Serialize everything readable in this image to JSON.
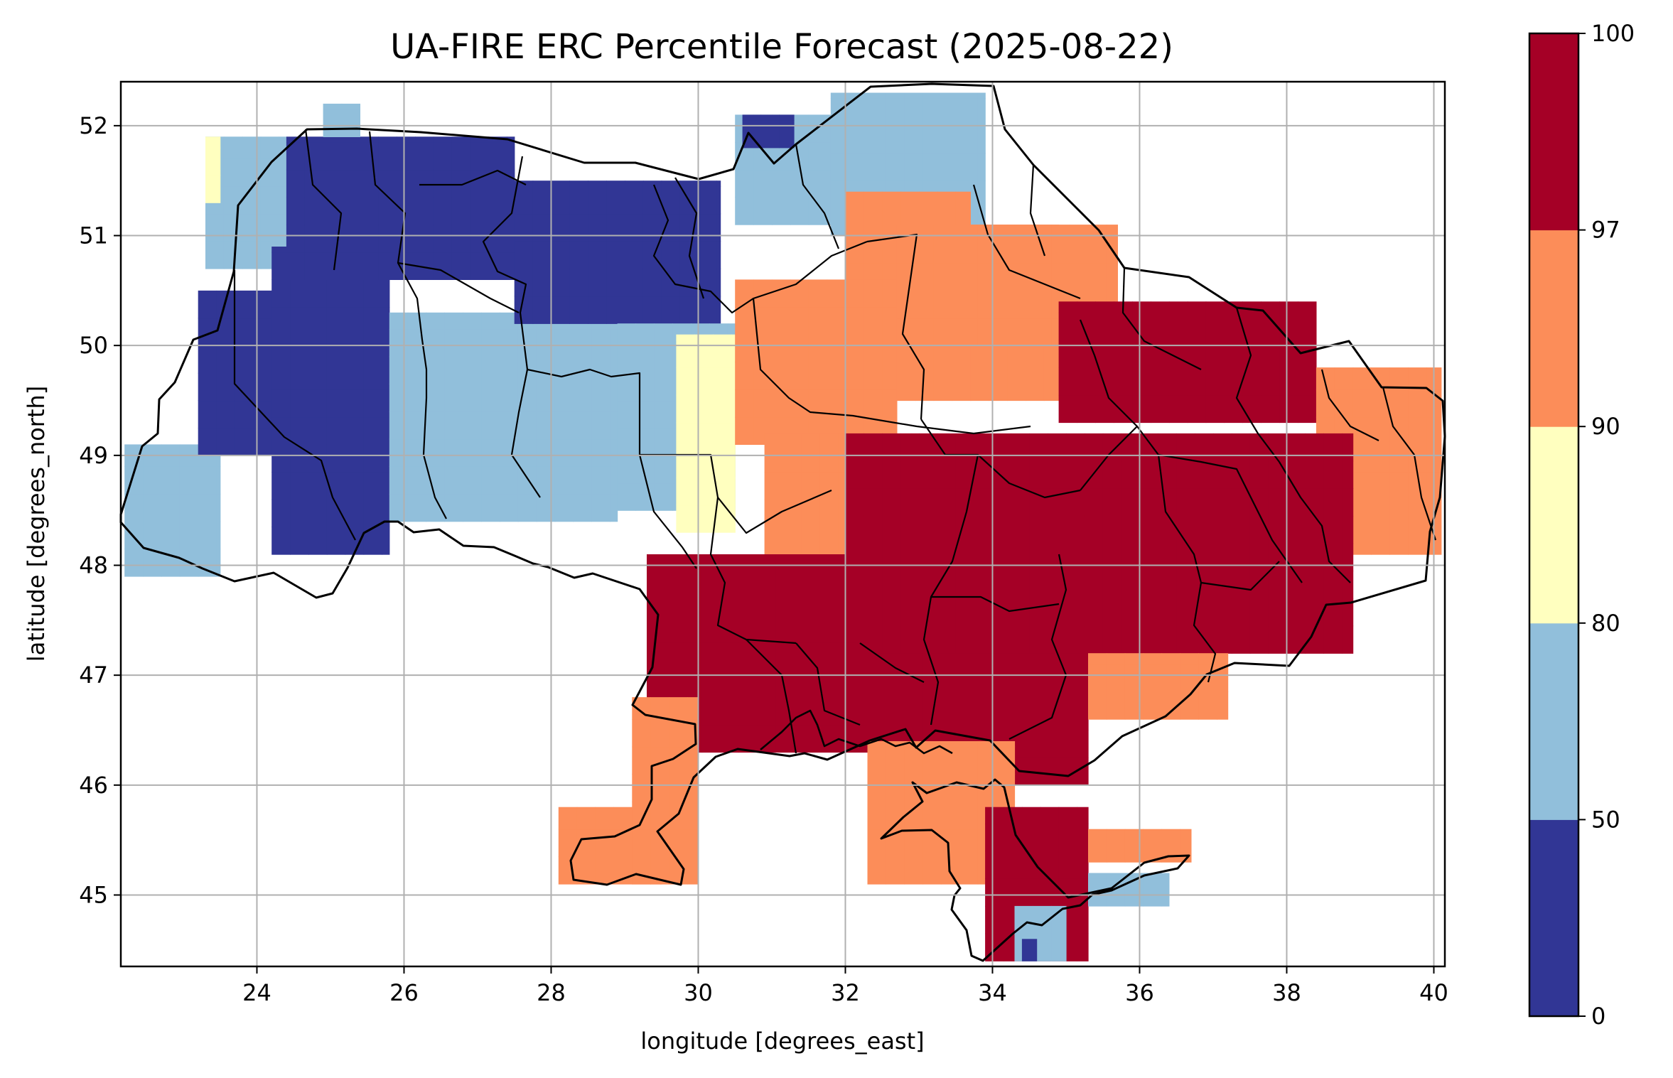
{
  "figure": {
    "title": "UA-FIRE ERC Percentile Forecast (2025-08-22)",
    "xlabel": "longitude [degrees_east]",
    "ylabel": "latitude [degrees_north]"
  },
  "colorbar": {
    "ticks": [
      "0",
      "50",
      "80",
      "90",
      "97",
      "100"
    ],
    "colors": [
      "#313695",
      "#91bfdb",
      "#ffffbf",
      "#fc8d59",
      "#a50026"
    ],
    "bins": [
      [
        0,
        50
      ],
      [
        50,
        80
      ],
      [
        80,
        90
      ],
      [
        90,
        97
      ],
      [
        97,
        100
      ]
    ]
  },
  "chart_data": {
    "type": "heatmap",
    "title": "UA-FIRE ERC Percentile Forecast (2025-08-22)",
    "xlabel": "longitude [degrees_east]",
    "ylabel": "latitude [degrees_north]",
    "xlim": [
      22.15,
      40.15
    ],
    "ylim": [
      44.35,
      52.4
    ],
    "xticks": [
      24,
      26,
      28,
      30,
      32,
      34,
      36,
      38,
      40
    ],
    "yticks": [
      45,
      46,
      47,
      48,
      49,
      50,
      51,
      52
    ],
    "grid": true,
    "value_categories": [
      "0-50",
      "50-80",
      "80-90",
      "90-97",
      "97-100"
    ],
    "cells": [
      {
        "lon": [
          22.2,
          23.5
        ],
        "lat": [
          47.9,
          49.1
        ],
        "cat": 1
      },
      {
        "lon": [
          23.2,
          24.2
        ],
        "lat": [
          49.0,
          50.5
        ],
        "cat": 0
      },
      {
        "lon": [
          23.3,
          24.4
        ],
        "lat": [
          50.7,
          51.9
        ],
        "cat": 1
      },
      {
        "lon": [
          23.3,
          23.5
        ],
        "lat": [
          51.3,
          51.9
        ],
        "cat": 2
      },
      {
        "lon": [
          24.2,
          25.8
        ],
        "lat": [
          48.1,
          50.9
        ],
        "cat": 0
      },
      {
        "lon": [
          24.4,
          27.5
        ],
        "lat": [
          50.6,
          51.9
        ],
        "cat": 0
      },
      {
        "lon": [
          24.9,
          25.4
        ],
        "lat": [
          51.9,
          52.2
        ],
        "cat": 1
      },
      {
        "lon": [
          25.8,
          28.9
        ],
        "lat": [
          48.4,
          50.3
        ],
        "cat": 1
      },
      {
        "lon": [
          27.5,
          30.3
        ],
        "lat": [
          50.2,
          51.5
        ],
        "cat": 0
      },
      {
        "lon": [
          28.9,
          30.5
        ],
        "lat": [
          48.5,
          50.2
        ],
        "cat": 1
      },
      {
        "lon": [
          29.7,
          30.5
        ],
        "lat": [
          48.3,
          50.1
        ],
        "cat": 2
      },
      {
        "lon": [
          30.5,
          31.8
        ],
        "lat": [
          51.1,
          52.1
        ],
        "cat": 1
      },
      {
        "lon": [
          30.6,
          31.3
        ],
        "lat": [
          51.8,
          52.1
        ],
        "cat": 0
      },
      {
        "lon": [
          31.8,
          33.9
        ],
        "lat": [
          51.0,
          52.3
        ],
        "cat": 1
      },
      {
        "lon": [
          32.0,
          33.7
        ],
        "lat": [
          50.5,
          51.4
        ],
        "cat": 3
      },
      {
        "lon": [
          30.5,
          32.7
        ],
        "lat": [
          49.1,
          50.6
        ],
        "cat": 3
      },
      {
        "lon": [
          32.7,
          34.9
        ],
        "lat": [
          49.5,
          51.1
        ],
        "cat": 3
      },
      {
        "lon": [
          33.3,
          35.7
        ],
        "lat": [
          50.0,
          51.1
        ],
        "cat": 3
      },
      {
        "lon": [
          34.9,
          38.4
        ],
        "lat": [
          49.3,
          50.4
        ],
        "cat": 4
      },
      {
        "lon": [
          38.4,
          40.1
        ],
        "lat": [
          48.1,
          49.8
        ],
        "cat": 3
      },
      {
        "lon": [
          30.9,
          33.4
        ],
        "lat": [
          48.1,
          49.2
        ],
        "cat": 3
      },
      {
        "lon": [
          32.0,
          38.9
        ],
        "lat": [
          47.2,
          49.2
        ],
        "cat": 4
      },
      {
        "lon": [
          29.3,
          32.3
        ],
        "lat": [
          46.3,
          48.1
        ],
        "cat": 4
      },
      {
        "lon": [
          29.1,
          30.0
        ],
        "lat": [
          45.1,
          46.8
        ],
        "cat": 3
      },
      {
        "lon": [
          28.1,
          29.5
        ],
        "lat": [
          45.1,
          45.8
        ],
        "cat": 3
      },
      {
        "lon": [
          32.3,
          35.3
        ],
        "lat": [
          46.0,
          47.2
        ],
        "cat": 4
      },
      {
        "lon": [
          35.3,
          37.2
        ],
        "lat": [
          46.6,
          47.2
        ],
        "cat": 3
      },
      {
        "lon": [
          32.3,
          34.3
        ],
        "lat": [
          45.1,
          46.4
        ],
        "cat": 3
      },
      {
        "lon": [
          33.9,
          35.3
        ],
        "lat": [
          44.4,
          45.8
        ],
        "cat": 4
      },
      {
        "lon": [
          35.3,
          36.7
        ],
        "lat": [
          45.3,
          45.6
        ],
        "cat": 3
      },
      {
        "lon": [
          35.3,
          36.4
        ],
        "lat": [
          44.9,
          45.2
        ],
        "cat": 1
      },
      {
        "lon": [
          34.3,
          35.0
        ],
        "lat": [
          44.4,
          44.9
        ],
        "cat": 1
      },
      {
        "lon": [
          34.4,
          34.6
        ],
        "lat": [
          44.4,
          44.6
        ],
        "cat": 0
      }
    ]
  }
}
